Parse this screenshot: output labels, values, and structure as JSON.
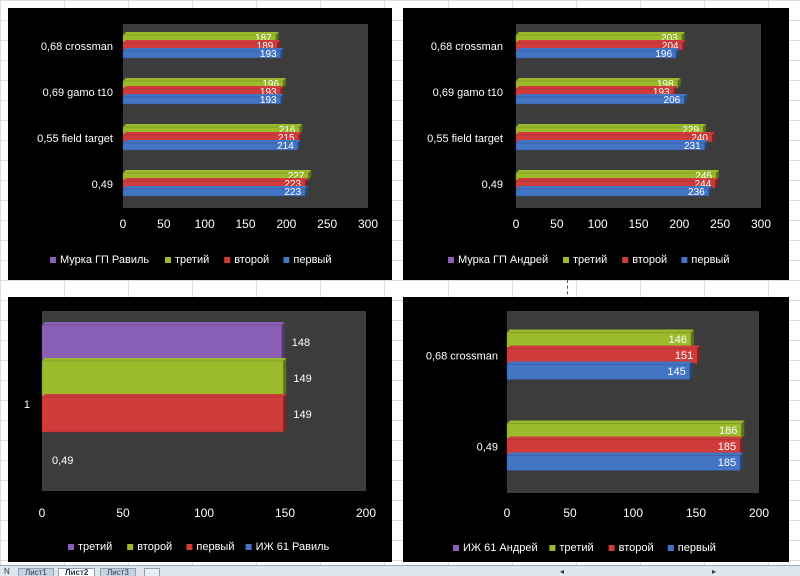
{
  "colors": {
    "chart_bg": "#000000",
    "plot_bg": "#3c3c3c",
    "text": "#ffffff",
    "purple": "#8a5fb6",
    "green": "#9bbb2c",
    "red": "#d03c3c",
    "blue": "#4474c4"
  },
  "chart_data": [
    {
      "type": "bar",
      "orientation": "horizontal",
      "categories": [
        "0,49",
        "0,55 field target",
        "0,69 gamo t10",
        "0,68 crossman"
      ],
      "series": [
        {
          "name": "первый",
          "color": "blue",
          "values": [
            223,
            214,
            193,
            193
          ]
        },
        {
          "name": "второй",
          "color": "red",
          "values": [
            223,
            215,
            193,
            189
          ]
        },
        {
          "name": "третий",
          "color": "green",
          "values": [
            227,
            216,
            196,
            187
          ]
        },
        {
          "name": "Мурка ГП Равиль",
          "color": "purple",
          "values": [
            null,
            null,
            null,
            null
          ]
        }
      ],
      "xlim": [
        0,
        300
      ],
      "xticks": [
        "0",
        "50",
        "100",
        "150",
        "200",
        "250",
        "300"
      ],
      "legend_position": "bottom",
      "legend_order": [
        "Мурка ГП Равиль",
        "третий",
        "второй",
        "первый"
      ]
    },
    {
      "type": "bar",
      "orientation": "horizontal",
      "categories": [
        "0,49",
        "0,55 field target",
        "0,69 gamo t10",
        "0,68 crossman"
      ],
      "series": [
        {
          "name": "первый",
          "color": "blue",
          "values": [
            236,
            231,
            206,
            196
          ]
        },
        {
          "name": "второй",
          "color": "red",
          "values": [
            244,
            240,
            193,
            204
          ]
        },
        {
          "name": "третий",
          "color": "green",
          "values": [
            245,
            229,
            198,
            203
          ]
        },
        {
          "name": "Мурка ГП Андрей",
          "color": "purple",
          "values": [
            null,
            null,
            null,
            null
          ]
        }
      ],
      "xlim": [
        0,
        300
      ],
      "xticks": [
        "0",
        "50",
        "100",
        "150",
        "200",
        "250",
        "300"
      ],
      "legend_position": "bottom",
      "legend_order": [
        "Мурка ГП Андрей",
        "третий",
        "второй",
        "первый"
      ]
    },
    {
      "type": "bar",
      "orientation": "horizontal",
      "categories": [
        "1"
      ],
      "extra_label": "0,49",
      "series": [
        {
          "name": "ИЖ 61 Равиль",
          "color": "blue",
          "values": [
            null
          ]
        },
        {
          "name": "первый",
          "color": "red",
          "values": [
            149
          ]
        },
        {
          "name": "второй",
          "color": "green",
          "values": [
            149
          ]
        },
        {
          "name": "третий",
          "color": "purple",
          "values": [
            148
          ]
        }
      ],
      "xlim": [
        0,
        200
      ],
      "xticks": [
        "0",
        "50",
        "100",
        "150",
        "200"
      ],
      "legend_position": "bottom",
      "legend_order": [
        "третий",
        "второй",
        "первый",
        "ИЖ 61 Равиль"
      ]
    },
    {
      "type": "bar",
      "orientation": "horizontal",
      "categories": [
        "0,49",
        "0,68 crossman"
      ],
      "series": [
        {
          "name": "первый",
          "color": "blue",
          "values": [
            185,
            145
          ]
        },
        {
          "name": "второй",
          "color": "red",
          "values": [
            185,
            151
          ]
        },
        {
          "name": "третий",
          "color": "green",
          "values": [
            186,
            146
          ]
        },
        {
          "name": "ИЖ 61 Андрей",
          "color": "purple",
          "values": [
            null,
            null
          ]
        }
      ],
      "xlim": [
        0,
        200
      ],
      "xticks": [
        "0",
        "50",
        "100",
        "150",
        "200"
      ],
      "legend_position": "bottom",
      "legend_order": [
        "ИЖ 61 Андрей",
        "третий",
        "второй",
        "первый"
      ]
    }
  ],
  "sheet_tabs": {
    "nav": "N",
    "tabs": [
      "Лист1",
      "Лист2",
      "Лист3"
    ],
    "active": "Лист2"
  }
}
